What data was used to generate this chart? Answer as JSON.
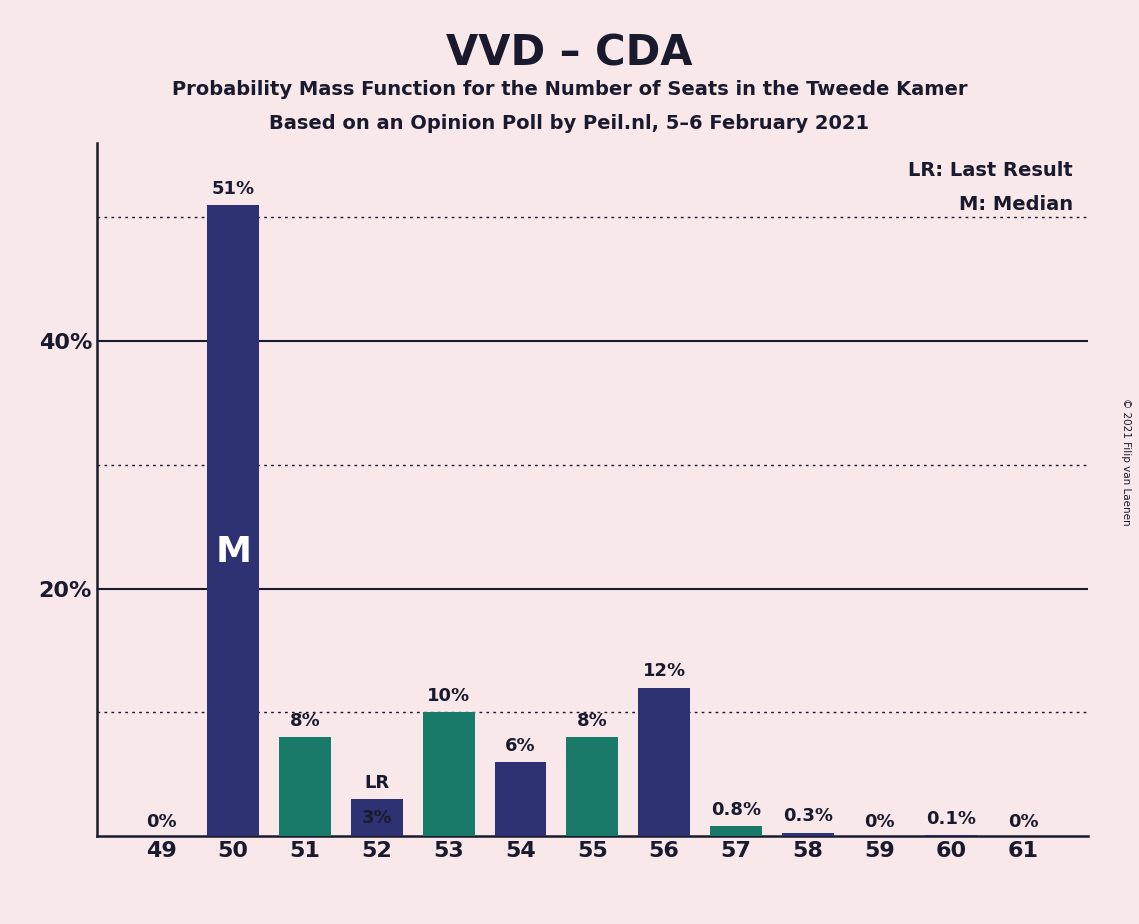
{
  "title": "VVD – CDA",
  "subtitle1": "Probability Mass Function for the Number of Seats in the Tweede Kamer",
  "subtitle2": "Based on an Opinion Poll by Peil.nl, 5–6 February 2021",
  "copyright": "© 2021 Filip van Laenen",
  "seats": [
    49,
    50,
    51,
    52,
    53,
    54,
    55,
    56,
    57,
    58,
    59,
    60,
    61
  ],
  "values": [
    0.0,
    51.0,
    8.0,
    3.0,
    10.0,
    6.0,
    8.0,
    12.0,
    0.8,
    0.3,
    0.0,
    0.1,
    0.0
  ],
  "labels": [
    "0%",
    "51%",
    "8%",
    "3%",
    "10%",
    "6%",
    "8%",
    "12%",
    "0.8%",
    "0.3%",
    "0%",
    "0.1%",
    "0%"
  ],
  "colors": [
    "#2e3273",
    "#2e3273",
    "#1a7a6a",
    "#2e3273",
    "#1a7a6a",
    "#2e3273",
    "#1a7a6a",
    "#2e3273",
    "#1a7a6a",
    "#2e3273",
    "#2e3273",
    "#2e3273",
    "#2e3273"
  ],
  "median_seat": 50,
  "lr_seat": 52,
  "background_color": "#f9e8ea",
  "ylim": [
    0,
    56
  ],
  "solid_lines": [
    20,
    40
  ],
  "dotted_lines": [
    10,
    30,
    50
  ],
  "legend_lr": "LR: Last Result",
  "legend_m": "M: Median",
  "median_label_color": "#ffffff",
  "text_color": "#1a1a2e",
  "spine_color": "#1a1a2e",
  "figsize": [
    11.39,
    9.24
  ],
  "dpi": 100
}
